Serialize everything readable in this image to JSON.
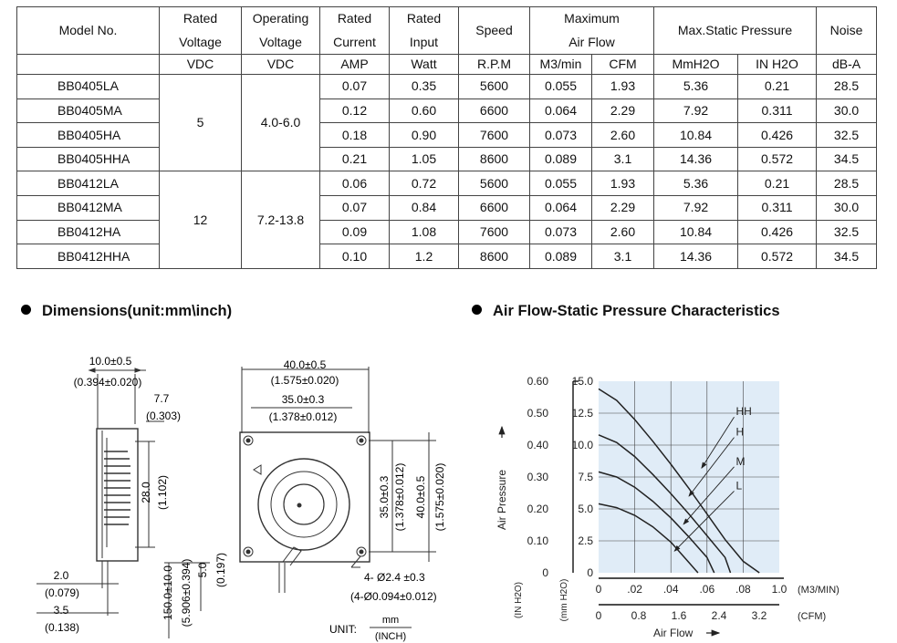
{
  "spec_table": {
    "header": {
      "model": "Model No.",
      "rated_voltage": [
        "Rated",
        "Voltage"
      ],
      "operating_voltage": [
        "Operating",
        "Voltage"
      ],
      "rated_current": [
        "Rated",
        "Current"
      ],
      "rated_input": [
        "Rated",
        "Input"
      ],
      "speed": "Speed",
      "max_air_flow": [
        "Maximum",
        "Air Flow"
      ],
      "max_static_pressure": "Max.Static Pressure",
      "noise": "Noise"
    },
    "units": [
      "VDC",
      "VDC",
      "AMP",
      "Watt",
      "R.P.M",
      "M3/min",
      "CFM",
      "MmH2O",
      "IN H2O",
      "dB-A"
    ],
    "groups": [
      {
        "rated_voltage": "5",
        "operating_voltage": "4.0-6.0"
      },
      {
        "rated_voltage": "12",
        "operating_voltage": "7.2-13.8"
      }
    ],
    "rows": [
      {
        "model": "BB0405LA",
        "current": "0.07",
        "input": "0.35",
        "rpm": "5600",
        "m3min": "0.055",
        "cfm": "1.93",
        "mmh2o": "5.36",
        "inh2o": "0.21",
        "noise": "28.5"
      },
      {
        "model": "BB0405MA",
        "current": "0.12",
        "input": "0.60",
        "rpm": "6600",
        "m3min": "0.064",
        "cfm": "2.29",
        "mmh2o": "7.92",
        "inh2o": "0.311",
        "noise": "30.0"
      },
      {
        "model": "BB0405HA",
        "current": "0.18",
        "input": "0.90",
        "rpm": "7600",
        "m3min": "0.073",
        "cfm": "2.60",
        "mmh2o": "10.84",
        "inh2o": "0.426",
        "noise": "32.5"
      },
      {
        "model": "BB0405HHA",
        "current": "0.21",
        "input": "1.05",
        "rpm": "8600",
        "m3min": "0.089",
        "cfm": "3.1",
        "mmh2o": "14.36",
        "inh2o": "0.572",
        "noise": "34.5"
      },
      {
        "model": "BB0412LA",
        "current": "0.06",
        "input": "0.72",
        "rpm": "5600",
        "m3min": "0.055",
        "cfm": "1.93",
        "mmh2o": "5.36",
        "inh2o": "0.21",
        "noise": "28.5"
      },
      {
        "model": "BB0412MA",
        "current": "0.07",
        "input": "0.84",
        "rpm": "6600",
        "m3min": "0.064",
        "cfm": "2.29",
        "mmh2o": "7.92",
        "inh2o": "0.311",
        "noise": "30.0"
      },
      {
        "model": "BB0412HA",
        "current": "0.09",
        "input": "1.08",
        "rpm": "7600",
        "m3min": "0.073",
        "cfm": "2.60",
        "mmh2o": "10.84",
        "inh2o": "0.426",
        "noise": "32.5"
      },
      {
        "model": "BB0412HHA",
        "current": "0.10",
        "input": "1.2",
        "rpm": "8600",
        "m3min": "0.089",
        "cfm": "3.1",
        "mmh2o": "14.36",
        "inh2o": "0.572",
        "noise": "34.5"
      }
    ]
  },
  "dimensions": {
    "title": "Dimensions(unit:mm\\inch)",
    "side": {
      "width": "10.0±0.5",
      "width_in": "(0.394±0.020)",
      "offset": "7.7",
      "offset_in": "(0.303)",
      "height": "28.0",
      "height_in": "(1.102)",
      "pin": "2.0",
      "pin_in": "(0.079)",
      "base": "3.5",
      "base_in": "(0.138)"
    },
    "front": {
      "outer": "40.0±0.5",
      "outer_in": "(1.575±0.020)",
      "hole": "35.0±0.3",
      "hole_in": "(1.378±0.012)",
      "v_hole": "35.0±0.3",
      "v_hole_in": "(1.378±0.012)",
      "v_outer": "40.0±0.5",
      "v_outer_in": "(1.575±0.020)",
      "lead": "150.0±10.0",
      "lead_in": "(5.906±0.394)",
      "strip": "5.0",
      "strip_in": "(0.197)",
      "holes": "4- Ø2.4 ±0.3",
      "holes_in": "(4-Ø0.094±0.012)",
      "unit_label": "UNIT:",
      "unit_mm": "mm",
      "unit_inch": "(INCH)"
    }
  },
  "airflow_chart": {
    "title": "Air Flow-Static Pressure Characteristics"
  },
  "chart_data": {
    "type": "line",
    "title": "Air Flow-Static Pressure Characteristics",
    "xlabel": "Air Flow",
    "ylabel": "Air Pressure",
    "xlim": [
      0,
      1.0
    ],
    "ylim": [
      0,
      15.0
    ],
    "x_ticks": [
      "0",
      ".02",
      ".04",
      ".06",
      ".08",
      "1.0"
    ],
    "x_unit": "(M3/MIN)",
    "x2_ticks": [
      "0",
      "0.8",
      "1.6",
      "2.4",
      "3.2"
    ],
    "x2_unit": "(CFM)",
    "y_ticks": [
      "0",
      "2.5",
      "5.0",
      "7.5",
      "10.0",
      "12.5",
      "15.0"
    ],
    "y_unit": "(mm H2O)",
    "y2_ticks": [
      "0",
      "0.10",
      "0.20",
      "0.30",
      "0.40",
      "0.50",
      "0.60"
    ],
    "y2_unit": "(IN H2O)",
    "grid": true,
    "series": [
      {
        "name": "HH",
        "points": [
          [
            0,
            14.4
          ],
          [
            0.1,
            13.5
          ],
          [
            0.2,
            12.0
          ],
          [
            0.3,
            10.3
          ],
          [
            0.4,
            8.5
          ],
          [
            0.5,
            6.6
          ],
          [
            0.6,
            4.6
          ],
          [
            0.7,
            2.6
          ],
          [
            0.8,
            0.9
          ],
          [
            0.89,
            0
          ]
        ]
      },
      {
        "name": "H",
        "points": [
          [
            0,
            10.8
          ],
          [
            0.1,
            10.2
          ],
          [
            0.2,
            9.1
          ],
          [
            0.3,
            7.7
          ],
          [
            0.4,
            6.2
          ],
          [
            0.5,
            4.6
          ],
          [
            0.6,
            2.9
          ],
          [
            0.7,
            1.2
          ],
          [
            0.73,
            0
          ]
        ]
      },
      {
        "name": "M",
        "points": [
          [
            0,
            7.9
          ],
          [
            0.1,
            7.5
          ],
          [
            0.2,
            6.7
          ],
          [
            0.3,
            5.6
          ],
          [
            0.4,
            4.3
          ],
          [
            0.5,
            2.8
          ],
          [
            0.6,
            1.2
          ],
          [
            0.64,
            0
          ]
        ]
      },
      {
        "name": "L",
        "points": [
          [
            0,
            5.4
          ],
          [
            0.1,
            5.1
          ],
          [
            0.2,
            4.5
          ],
          [
            0.3,
            3.6
          ],
          [
            0.4,
            2.4
          ],
          [
            0.5,
            0.8
          ],
          [
            0.55,
            0
          ]
        ]
      }
    ]
  }
}
